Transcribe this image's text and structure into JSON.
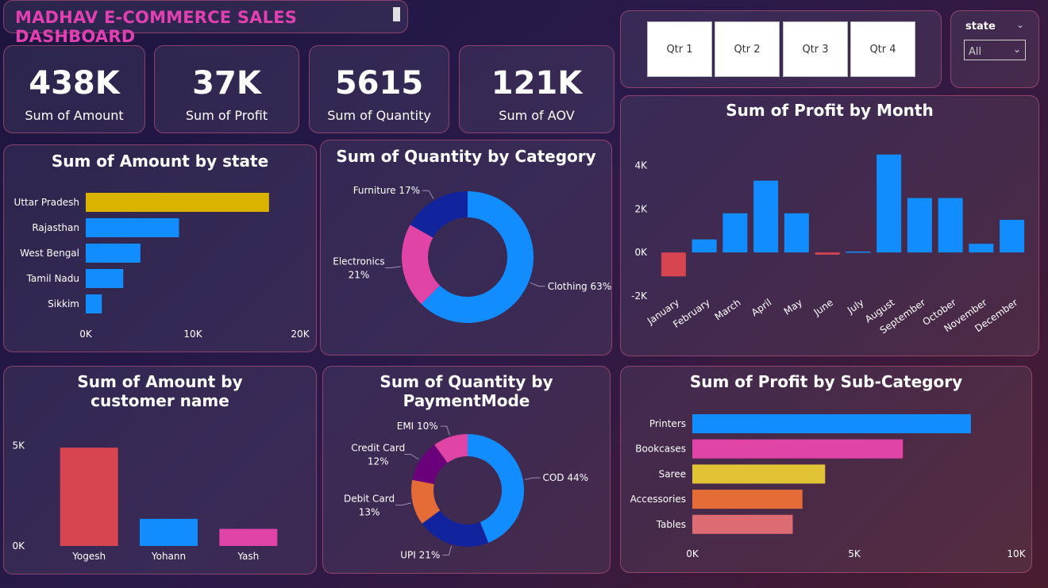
{
  "dashboard": {
    "title": "MADHAV E-COMMERCE SALES DASHBOARD"
  },
  "kpis": [
    {
      "value": "438K",
      "label": "Sum of Amount"
    },
    {
      "value": "37K",
      "label": "Sum of Profit"
    },
    {
      "value": "5615",
      "label": "Sum of Quantity"
    },
    {
      "value": "121K",
      "label": "Sum of AOV"
    }
  ],
  "quarter_slicer": {
    "options": [
      "Qtr 1",
      "Qtr 2",
      "Qtr 3",
      "Qtr 4"
    ]
  },
  "state_slicer": {
    "label": "state",
    "selected": "All"
  },
  "colors": {
    "blue": "#118dff",
    "gold": "#d9b300",
    "red": "#d64550",
    "pink": "#e044a7",
    "navy": "#12239e",
    "purple": "#6b007b",
    "orange": "#e66c37",
    "yellow": "#e3c336",
    "salmon": "#dd6b73",
    "title_pink": "#e040b0"
  },
  "chart_data": [
    {
      "id": "amount_by_state",
      "type": "bar",
      "orientation": "horizontal",
      "title": "Sum of Amount by state",
      "categories": [
        "Uttar Pradesh",
        "Rajasthan",
        "West Bengal",
        "Tamil Nadu",
        "Sikkim"
      ],
      "values": [
        17100,
        8700,
        5100,
        3500,
        1500
      ],
      "colors": [
        "#d9b300",
        "#118dff",
        "#118dff",
        "#118dff",
        "#118dff"
      ],
      "xlim": [
        0,
        20000
      ],
      "ticks": [
        0,
        10000,
        20000
      ],
      "tick_labels": [
        "0K",
        "10K",
        "20K"
      ]
    },
    {
      "id": "quantity_by_category",
      "type": "pie",
      "donut": true,
      "title": "Sum of Quantity by Category",
      "slices": [
        {
          "name": "Clothing",
          "value": 63,
          "label": "Clothing 63%",
          "color": "#118dff"
        },
        {
          "name": "Electronics",
          "value": 21,
          "label": "Electronics 21%",
          "color": "#e044a7"
        },
        {
          "name": "Furniture",
          "value": 17,
          "label": "Furniture 17%",
          "color": "#12239e"
        }
      ]
    },
    {
      "id": "profit_by_month",
      "type": "bar",
      "title": "Sum of Profit by Month",
      "categories": [
        "January",
        "February",
        "March",
        "April",
        "May",
        "June",
        "July",
        "August",
        "September",
        "October",
        "November",
        "December"
      ],
      "values": [
        -1100,
        600,
        1800,
        3300,
        1800,
        -100,
        40,
        4500,
        2500,
        2500,
        400,
        1500
      ],
      "positive_color": "#118dff",
      "negative_color": "#d64550",
      "ylim": [
        -2000,
        5000
      ],
      "ticks": [
        -2000,
        0,
        2000,
        4000
      ],
      "tick_labels": [
        "-2K",
        "0K",
        "2K",
        "4K"
      ]
    },
    {
      "id": "amount_by_customer",
      "type": "bar",
      "title": "Sum of Amount by customer name",
      "categories": [
        "Yogesh",
        "Yohann",
        "Yash"
      ],
      "values": [
        4900,
        1350,
        850
      ],
      "colors": [
        "#d64550",
        "#118dff",
        "#e044a7"
      ],
      "ylim": [
        0,
        5300
      ],
      "ticks": [
        0,
        5000
      ],
      "tick_labels": [
        "0K",
        "5K"
      ]
    },
    {
      "id": "quantity_by_paymentmode",
      "type": "pie",
      "donut": true,
      "title": "Sum of Quantity by PaymentMode",
      "slices": [
        {
          "name": "COD",
          "value": 44,
          "label": "COD 44%",
          "color": "#118dff"
        },
        {
          "name": "UPI",
          "value": 21,
          "label": "UPI 21%",
          "color": "#12239e"
        },
        {
          "name": "Debit Card",
          "value": 13,
          "label": "Debit Card 13%",
          "color": "#e66c37"
        },
        {
          "name": "Credit Card",
          "value": 12,
          "label": "Credit Card 12%",
          "color": "#6b007b"
        },
        {
          "name": "EMI",
          "value": 10,
          "label": "EMI 10%",
          "color": "#e044a7"
        }
      ]
    },
    {
      "id": "profit_by_subcategory",
      "type": "bar",
      "orientation": "horizontal",
      "title": "Sum of Profit by Sub-Category",
      "categories": [
        "Printers",
        "Bookcases",
        "Saree",
        "Accessories",
        "Tables"
      ],
      "values": [
        8600,
        6500,
        4100,
        3400,
        3100
      ],
      "colors": [
        "#118dff",
        "#e044a7",
        "#e3c336",
        "#e66c37",
        "#dd6b73"
      ],
      "xlim": [
        0,
        10000
      ],
      "ticks": [
        0,
        5000,
        10000
      ],
      "tick_labels": [
        "0K",
        "5K",
        "10K"
      ]
    }
  ]
}
